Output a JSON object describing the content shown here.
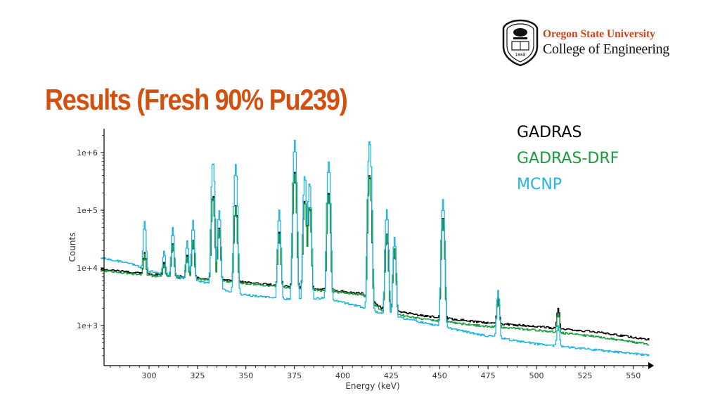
{
  "slide": {
    "title": "Results (Fresh 90% Pu239)",
    "title_color": "#d4500f"
  },
  "logo": {
    "line1": "Oregon State University",
    "line2": "College of Engineering",
    "line1_color": "#c8461a",
    "seal_text": "1868"
  },
  "legend": {
    "entries": [
      {
        "label": "GADRAS",
        "color": "#000000"
      },
      {
        "label": "GADRAS-DRF",
        "color": "#1a9c3a"
      },
      {
        "label": "MCNP",
        "color": "#22b4e0"
      }
    ]
  },
  "chart_data": {
    "type": "line",
    "title": "",
    "xlabel": "Energy (keV)",
    "ylabel": "Counts",
    "xlim": [
      275,
      560
    ],
    "ylim": [
      200,
      3000000
    ],
    "yscale": "log",
    "xticks": [
      300,
      325,
      350,
      375,
      400,
      425,
      450,
      475,
      500,
      525,
      550
    ],
    "yticks": [
      1000,
      10000,
      100000,
      1000000
    ],
    "ytick_labels": [
      "1e+3",
      "1e+4",
      "1e+5",
      "1e+6"
    ],
    "grid": false,
    "legend_position": "right",
    "series": [
      {
        "name": "GADRAS",
        "color": "#000000",
        "baseline": [
          [
            275,
            9500
          ],
          [
            300,
            7800
          ],
          [
            330,
            6500
          ],
          [
            360,
            5200
          ],
          [
            390,
            4200
          ],
          [
            410,
            3600
          ],
          [
            420,
            2000
          ],
          [
            440,
            1500
          ],
          [
            470,
            1150
          ],
          [
            500,
            960
          ],
          [
            530,
            780
          ],
          [
            560,
            560
          ]
        ],
        "peaks": [
          [
            297.5,
            18000
          ],
          [
            307.5,
            12000
          ],
          [
            312.0,
            26000
          ],
          [
            319.5,
            16000
          ],
          [
            322.5,
            30000
          ],
          [
            332.8,
            180000
          ],
          [
            336.0,
            50000
          ],
          [
            344.5,
            120000
          ],
          [
            367.0,
            40000
          ],
          [
            375.0,
            450000
          ],
          [
            380.2,
            150000
          ],
          [
            382.7,
            120000
          ],
          [
            392.5,
            200000
          ],
          [
            413.7,
            420000
          ],
          [
            422.5,
            40000
          ],
          [
            426.5,
            22000
          ],
          [
            451.5,
            70000
          ],
          [
            480.0,
            3000
          ],
          [
            511.0,
            2000
          ]
        ]
      },
      {
        "name": "GADRAS-DRF",
        "color": "#1a9c3a",
        "baseline": [
          [
            275,
            9000
          ],
          [
            300,
            7400
          ],
          [
            330,
            6200
          ],
          [
            360,
            5000
          ],
          [
            390,
            4000
          ],
          [
            410,
            3400
          ],
          [
            420,
            1800
          ],
          [
            440,
            1300
          ],
          [
            470,
            1000
          ],
          [
            500,
            830
          ],
          [
            530,
            650
          ],
          [
            560,
            460
          ]
        ],
        "peaks": [
          [
            297.5,
            17000
          ],
          [
            307.5,
            11500
          ],
          [
            312.0,
            25000
          ],
          [
            319.5,
            15500
          ],
          [
            322.5,
            29000
          ],
          [
            332.8,
            175000
          ],
          [
            336.0,
            48000
          ],
          [
            344.5,
            115000
          ],
          [
            367.0,
            38000
          ],
          [
            375.0,
            440000
          ],
          [
            380.2,
            145000
          ],
          [
            382.7,
            115000
          ],
          [
            392.5,
            190000
          ],
          [
            413.7,
            410000
          ],
          [
            422.5,
            38000
          ],
          [
            426.5,
            21000
          ],
          [
            451.5,
            68000
          ],
          [
            480.0,
            2800
          ],
          [
            511.0,
            1700
          ]
        ]
      },
      {
        "name": "MCNP",
        "color": "#22b4e0",
        "baseline": [
          [
            275,
            15000
          ],
          [
            290,
            12000
          ],
          [
            300,
            8800
          ],
          [
            330,
            5500
          ],
          [
            345,
            3500
          ],
          [
            375,
            2800
          ],
          [
            390,
            3000
          ],
          [
            410,
            2100
          ],
          [
            420,
            1600
          ],
          [
            440,
            1150
          ],
          [
            470,
            700
          ],
          [
            500,
            480
          ],
          [
            530,
            380
          ],
          [
            560,
            300
          ]
        ],
        "peaks": [
          [
            297.5,
            65000
          ],
          [
            307.5,
            20000
          ],
          [
            312.0,
            50000
          ],
          [
            319.5,
            30000
          ],
          [
            322.5,
            65000
          ],
          [
            332.8,
            700000
          ],
          [
            336.0,
            100000
          ],
          [
            344.5,
            600000
          ],
          [
            367.0,
            100000
          ],
          [
            375.0,
            1600000
          ],
          [
            380.2,
            400000
          ],
          [
            382.7,
            300000
          ],
          [
            392.5,
            700000
          ],
          [
            413.7,
            1600000
          ],
          [
            422.5,
            100000
          ],
          [
            426.5,
            35000
          ],
          [
            451.5,
            150000
          ],
          [
            480.0,
            4000
          ],
          [
            511.0,
            1000
          ]
        ]
      }
    ]
  }
}
